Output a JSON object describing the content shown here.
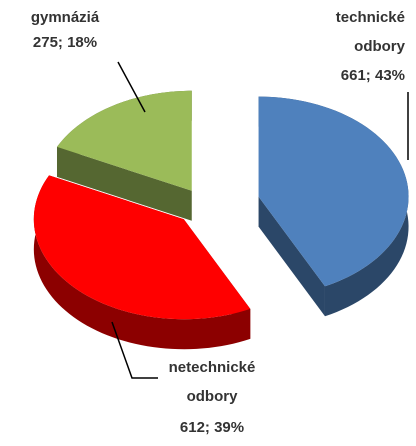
{
  "chart_data": {
    "type": "pie3d",
    "categories": [
      "technické odbory",
      "netechnické odbory",
      "gymnáziá"
    ],
    "values": [
      661,
      612,
      275
    ],
    "value_labels": [
      "661; 43%",
      "612; 39%",
      "275; 18%"
    ],
    "colors": [
      "#4f81bd",
      "#ff0000",
      "#9bbb59"
    ]
  }
}
